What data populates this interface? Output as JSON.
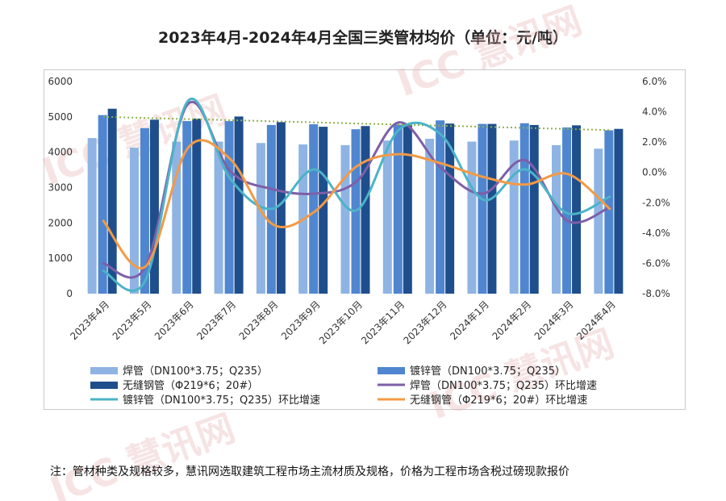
{
  "title": "2023年4月-2024年4月全国三类管材均价（单位：元/吨）",
  "note": "注：管材种类及规格较多，慧讯网选取建筑工程市场主流材质及规格，价格为工程市场含税过磅现款报价",
  "watermark": "ICC 慧讯网",
  "colors": {
    "weld": "#8fb4e3",
    "galv": "#4f86cf",
    "seamless": "#1f4e8c",
    "weld_rate": "#7e5fa8",
    "galv_rate": "#4bb3c8",
    "seamless_rate": "#f29a46",
    "trend": "#8db04a"
  },
  "chart_data": {
    "type": "bar",
    "categories": [
      "2023年4月",
      "2023年5月",
      "2023年6月",
      "2023年7月",
      "2023年8月",
      "2023年9月",
      "2023年10月",
      "2023年11月",
      "2023年12月",
      "2024年1月",
      "2024年2月",
      "2024年3月",
      "2024年4月"
    ],
    "left_axis": {
      "min": 0,
      "max": 6000,
      "ticks": [
        0,
        1000,
        2000,
        3000,
        4000,
        5000,
        6000
      ]
    },
    "right_axis": {
      "min": -8,
      "max": 6,
      "ticks": [
        6,
        4,
        2,
        0,
        -2,
        -4,
        -6,
        -8
      ],
      "tick_labels": [
        "6.0%",
        "4.0%",
        "2.0%",
        "0.0%",
        "-2.0%",
        "-4.0%",
        "-6.0%",
        "-8.0%"
      ]
    },
    "bar_series": [
      {
        "name": "焊管（DN100*3.75；Q235）",
        "color_key": "weld",
        "values": [
          4400,
          4130,
          4300,
          4300,
          4260,
          4220,
          4200,
          4330,
          4380,
          4300,
          4330,
          4200,
          4100
        ]
      },
      {
        "name": "镀锌管（DN100*3.75；Q235）",
        "color_key": "galv",
        "values": [
          5050,
          4680,
          4880,
          4880,
          4770,
          4790,
          4650,
          4780,
          4900,
          4800,
          4820,
          4700,
          4620
        ]
      },
      {
        "name": "无缝钢管（Φ219*6；20#）",
        "color_key": "seamless",
        "values": [
          5230,
          4920,
          4950,
          5010,
          4850,
          4720,
          4740,
          4780,
          4810,
          4800,
          4770,
          4760,
          4660
        ]
      }
    ],
    "line_series": [
      {
        "name": "焊管（DN100*3.75；Q235）环比增速",
        "color_key": "weld_rate",
        "values": [
          -6.0,
          -6.2,
          4.5,
          0.1,
          -1.1,
          -1.4,
          -0.6,
          3.3,
          0.3,
          -1.4,
          0.8,
          -3.2,
          -2.3
        ]
      },
      {
        "name": "镀锌管（DN100*3.75；Q235）环比增速",
        "color_key": "galv_rate",
        "values": [
          -6.5,
          -7.1,
          4.7,
          -0.4,
          -2.4,
          0.2,
          -2.5,
          2.8,
          2.5,
          -1.8,
          0.2,
          -2.7,
          -1.6
        ]
      },
      {
        "name": "无缝钢管（Φ219*6；20#）环比增速",
        "color_key": "seamless_rate",
        "values": [
          -3.2,
          -6.2,
          1.6,
          0.9,
          -3.4,
          -2.6,
          0.4,
          1.2,
          0.6,
          -0.3,
          -0.8,
          -0.1,
          -2.4
        ]
      }
    ],
    "trendline": {
      "series": "无缝钢管（Φ219*6；20#）",
      "start": 5000,
      "end": 4625
    },
    "legend": [
      {
        "label": "焊管（DN100*3.75；Q235）",
        "kind": "bar",
        "color_key": "weld"
      },
      {
        "label": "镀锌管（DN100*3.75；Q235）",
        "kind": "bar",
        "color_key": "galv"
      },
      {
        "label": "无缝钢管（Φ219*6；20#）",
        "kind": "bar",
        "color_key": "seamless"
      },
      {
        "label": "焊管（DN100*3.75；Q235）环比增速",
        "kind": "line",
        "color_key": "weld_rate"
      },
      {
        "label": "镀锌管（DN100*3.75；Q235）环比增速",
        "kind": "line",
        "color_key": "galv_rate"
      },
      {
        "label": "无缝钢管（Φ219*6；20#）环比增速",
        "kind": "line",
        "color_key": "seamless_rate"
      }
    ],
    "legend_position": "bottom",
    "grid": false
  }
}
